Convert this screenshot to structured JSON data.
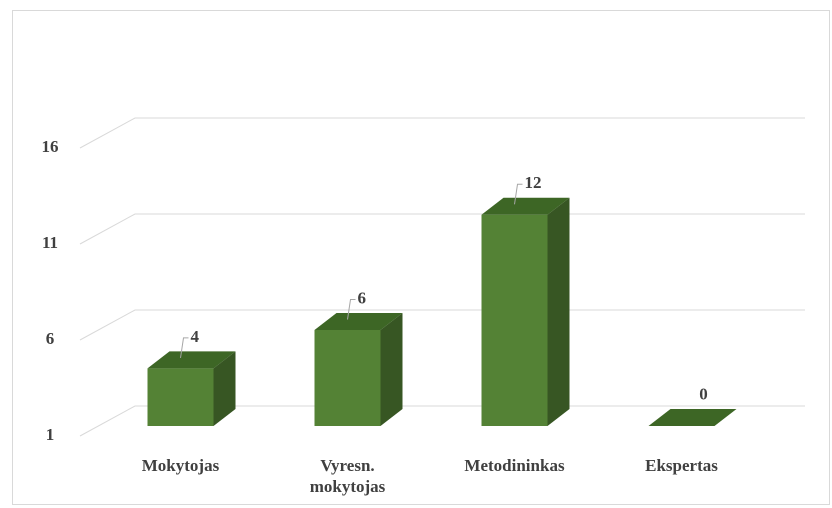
{
  "chart_data": {
    "type": "bar3d",
    "categories": [
      "Mokytojas",
      "Vyresn. mokytojas",
      "Metodininkas",
      "Ekspertas"
    ],
    "values": [
      4,
      6,
      12,
      0
    ],
    "color": "#548235",
    "ylim": [
      1,
      16
    ],
    "yticks": [
      1,
      6,
      11,
      16
    ],
    "grid": true
  }
}
